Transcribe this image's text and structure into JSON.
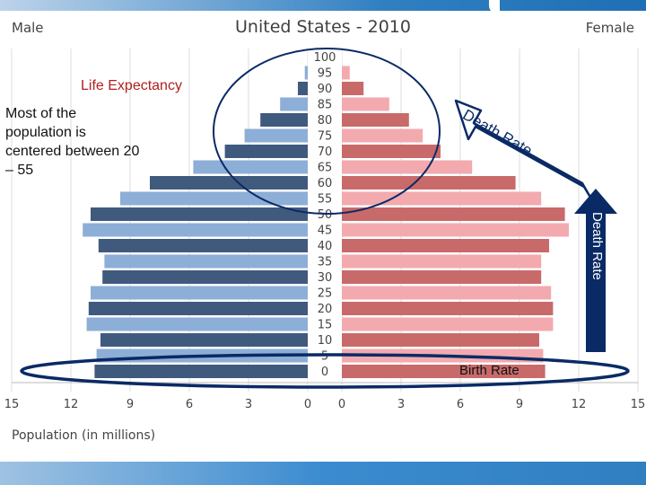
{
  "chart_data": {
    "type": "bar",
    "title": "United States - 2010",
    "left_label": "Male",
    "right_label": "Female",
    "xlabel": "Population (in millions)",
    "x_ticks": [
      "15",
      "12",
      "9",
      "6",
      "3",
      "0"
    ],
    "x_ticks_right": [
      "0",
      "3",
      "6",
      "9",
      "12",
      "15"
    ],
    "xlim": [
      0,
      15
    ],
    "age_groups": [
      "0",
      "5",
      "10",
      "15",
      "20",
      "25",
      "30",
      "35",
      "40",
      "45",
      "50",
      "55",
      "60",
      "65",
      "70",
      "75",
      "80",
      "85",
      "90",
      "95",
      "100"
    ],
    "series": [
      {
        "name": "Male",
        "values": [
          10.8,
          10.7,
          10.5,
          11.2,
          11.1,
          11.0,
          10.4,
          10.3,
          10.6,
          11.4,
          11.0,
          9.5,
          8.0,
          5.8,
          4.2,
          3.2,
          2.4,
          1.4,
          0.5,
          0.15,
          0.0
        ]
      },
      {
        "name": "Female",
        "values": [
          10.3,
          10.2,
          10.0,
          10.7,
          10.7,
          10.6,
          10.1,
          10.1,
          10.5,
          11.5,
          11.3,
          10.1,
          8.8,
          6.6,
          5.0,
          4.1,
          3.4,
          2.4,
          1.1,
          0.4,
          0.0
        ]
      }
    ]
  },
  "annotations": {
    "life_expectancy": "Life Expectancy",
    "summary": "Most of the population is centered between 20 – 55",
    "death_rate_vertical": "Death Rate",
    "death_rate_diagonal": "Death Rate",
    "birth_rate": "Birth Rate"
  },
  "colors": {
    "male_dark": "#405a7e",
    "male_light": "#8daed6",
    "female_dark": "#c86a6a",
    "female_light": "#f2aaaf",
    "navy": "#0a2a66",
    "annot_text": "#b02020"
  }
}
